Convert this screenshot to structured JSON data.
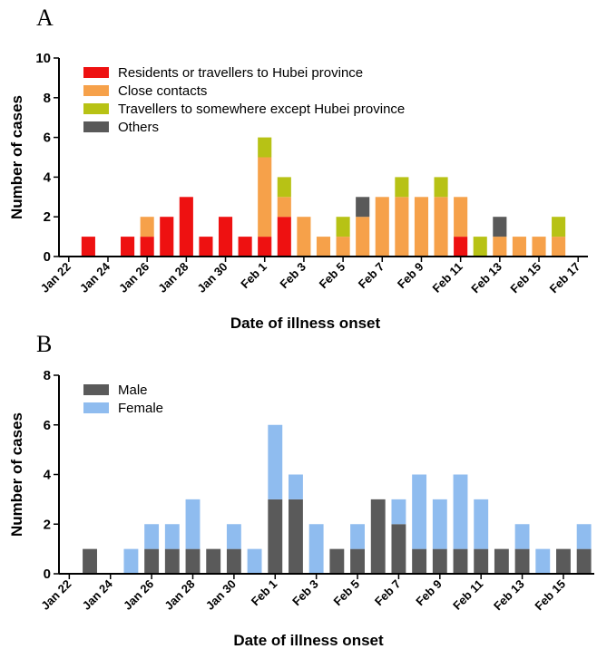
{
  "chart_data": [
    {
      "panel_label": "A",
      "type": "bar",
      "stacked": true,
      "xlabel": "Date of illness onset",
      "ylabel": "Number of cases",
      "ylim": [
        0,
        10
      ],
      "yticks": [
        0,
        2,
        4,
        6,
        8,
        10
      ],
      "dates": [
        "Jan 22",
        "Jan 23",
        "Jan 24",
        "Jan 25",
        "Jan 26",
        "Jan 27",
        "Jan 28",
        "Jan 29",
        "Jan 30",
        "Jan 31",
        "Feb 1",
        "Feb 2",
        "Feb 3",
        "Feb 4",
        "Feb 5",
        "Feb 6",
        "Feb 7",
        "Feb 8",
        "Feb 9",
        "Feb 10",
        "Feb 11",
        "Feb 12",
        "Feb 13",
        "Feb 14",
        "Feb 15",
        "Feb 16",
        "Feb 17"
      ],
      "tick_labels": [
        "Jan 22",
        "Jan 24",
        "Jan 26",
        "Jan 28",
        "Jan 30",
        "Feb 1",
        "Feb 3",
        "Feb 5",
        "Feb 7",
        "Feb 9",
        "Feb 11",
        "Feb 13",
        "Feb 15",
        "Feb 17"
      ],
      "legend_position": "top-left",
      "series": [
        {
          "name": "Residents or travellers to Hubei province",
          "color": "#ee1111",
          "values": [
            0,
            1,
            0,
            1,
            1,
            2,
            3,
            1,
            2,
            1,
            1,
            2,
            0,
            0,
            0,
            0,
            0,
            0,
            0,
            0,
            1,
            0,
            0,
            0,
            0,
            0,
            0
          ]
        },
        {
          "name": "Close contacts",
          "color": "#f6a14a",
          "values": [
            0,
            0,
            0,
            0,
            1,
            0,
            0,
            0,
            0,
            0,
            4,
            1,
            2,
            1,
            1,
            2,
            3,
            3,
            3,
            3,
            2,
            0,
            1,
            1,
            1,
            1,
            0
          ]
        },
        {
          "name": "Travellers to somewhere except Hubei province",
          "color": "#b7c215",
          "values": [
            0,
            0,
            0,
            0,
            0,
            0,
            0,
            0,
            0,
            0,
            1,
            1,
            0,
            0,
            1,
            0,
            0,
            1,
            0,
            1,
            0,
            1,
            0,
            0,
            0,
            1,
            0
          ]
        },
        {
          "name": "Others",
          "color": "#595959",
          "values": [
            0,
            0,
            0,
            0,
            0,
            0,
            0,
            0,
            0,
            0,
            0,
            0,
            0,
            0,
            0,
            1,
            0,
            0,
            0,
            0,
            0,
            0,
            1,
            0,
            0,
            0,
            0
          ]
        }
      ]
    },
    {
      "panel_label": "B",
      "type": "bar",
      "stacked": true,
      "xlabel": "Date of illness onset",
      "ylabel": "Number of cases",
      "ylim": [
        0,
        8
      ],
      "yticks": [
        0,
        2,
        4,
        6,
        8
      ],
      "dates": [
        "Jan 22",
        "Jan 23",
        "Jan 24",
        "Jan 25",
        "Jan 26",
        "Jan 27",
        "Jan 28",
        "Jan 29",
        "Jan 30",
        "Jan 31",
        "Feb 1",
        "Feb 2",
        "Feb 3",
        "Feb 4",
        "Feb 5",
        "Feb 6",
        "Feb 7",
        "Feb 8",
        "Feb 9",
        "Feb 10",
        "Feb 11",
        "Feb 12",
        "Feb 13",
        "Feb 14",
        "Feb 15",
        "Feb 16"
      ],
      "tick_labels": [
        "Jan 22",
        "Jan 24",
        "Jan 26",
        "Jan 28",
        "Jan 30",
        "Feb 1",
        "Feb 3",
        "Feb 5",
        "Feb 7",
        "Feb 9",
        "Feb 11",
        "Feb 13",
        "Feb 15"
      ],
      "legend_position": "top-left",
      "series": [
        {
          "name": "Male",
          "color": "#5a5a5a",
          "values": [
            0,
            1,
            0,
            0,
            1,
            1,
            1,
            1,
            1,
            0,
            3,
            3,
            0,
            1,
            1,
            3,
            2,
            1,
            1,
            1,
            1,
            1,
            1,
            0,
            1,
            1
          ]
        },
        {
          "name": "Female",
          "color": "#8fbcef",
          "values": [
            0,
            0,
            0,
            1,
            1,
            1,
            2,
            0,
            1,
            1,
            3,
            1,
            2,
            0,
            1,
            0,
            1,
            3,
            2,
            3,
            2,
            0,
            1,
            1,
            0,
            1
          ]
        }
      ]
    }
  ]
}
